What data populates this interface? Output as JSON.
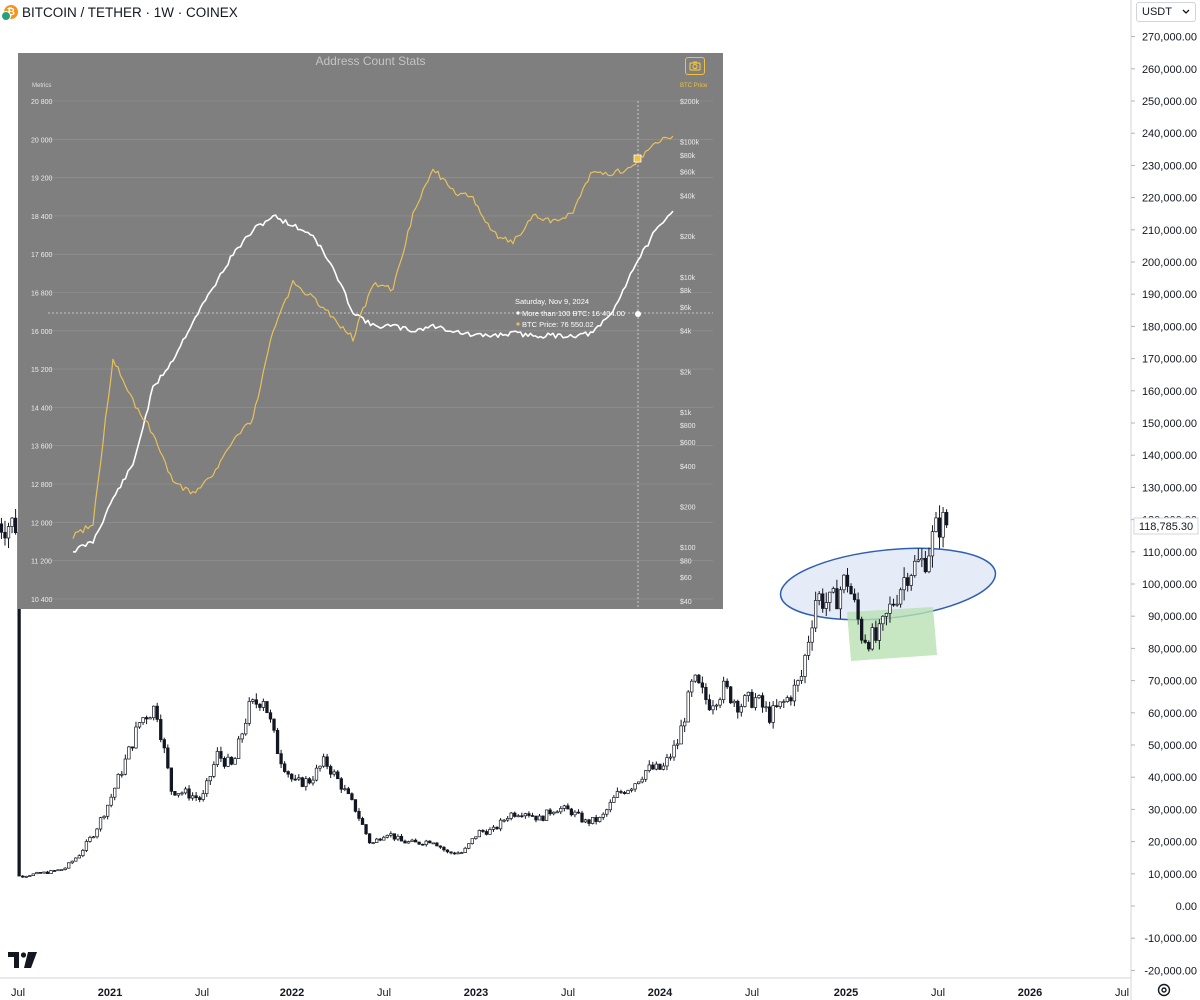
{
  "header": {
    "symbol": "BITCOIN / TETHER · 1W · COINEX",
    "currency": "USDT"
  },
  "icons": {
    "coin": "bitcoin-tether-icon",
    "dropdown": "chevron-down-icon",
    "settings": "gear-icon",
    "logo": "tradingview-logo-icon"
  },
  "colors": {
    "up": "#ffffff",
    "down": "#131722",
    "ellipse_fill": "#dce6f6",
    "ellipse_stroke": "#2f5fb5",
    "rect_fill": "#b9e1b4",
    "inset_bg": "#7f7f7f",
    "btc_price": "#e8c15a",
    "address_count": "#ffffff"
  },
  "chart_data": [
    {
      "type": "candlestick",
      "title": "BITCOIN / TETHER · 1W · COINEX",
      "y_axis": {
        "min": -20000,
        "max": 270000,
        "ticks": [
          "270,000.00",
          "260,000.00",
          "250,000.00",
          "240,000.00",
          "230,000.00",
          "220,000.00",
          "210,000.00",
          "200,000.00",
          "190,000.00",
          "180,000.00",
          "170,000.00",
          "160,000.00",
          "150,000.00",
          "140,000.00",
          "130,000.00",
          "120,000.00",
          "110,000.00",
          "100,000.00",
          "90,000.00",
          "80,000.00",
          "70,000.00",
          "60,000.00",
          "50,000.00",
          "40,000.00",
          "30,000.00",
          "20,000.00",
          "10,000.00",
          "0.00",
          "-10,000.00",
          "-20,000.00"
        ]
      },
      "x_axis": {
        "labels": [
          "Jul",
          "2021",
          "Jul",
          "2022",
          "Jul",
          "2023",
          "Jul",
          "2024",
          "Jul",
          "2025",
          "Jul",
          "2026",
          "Jul"
        ]
      },
      "last_price": "118,785.30",
      "price_path": [
        [
          "2020-07",
          9200
        ],
        [
          "2020-09",
          10500
        ],
        [
          "2020-10",
          11500
        ],
        [
          "2020-11",
          16000
        ],
        [
          "2020-12",
          23000
        ],
        [
          "2021-01",
          33000
        ],
        [
          "2021-02",
          45000
        ],
        [
          "2021-03",
          58000
        ],
        [
          "2021-04",
          62000
        ],
        [
          "2021-05",
          36000
        ],
        [
          "2021-06",
          35000
        ],
        [
          "2021-07",
          33000
        ],
        [
          "2021-08",
          47000
        ],
        [
          "2021-09",
          43000
        ],
        [
          "2021-10",
          61000
        ],
        [
          "2021-11",
          65000
        ],
        [
          "2021-12",
          47000
        ],
        [
          "2022-01",
          38000
        ],
        [
          "2022-02",
          39000
        ],
        [
          "2022-03",
          45000
        ],
        [
          "2022-04",
          38000
        ],
        [
          "2022-05",
          30000
        ],
        [
          "2022-06",
          19000
        ],
        [
          "2022-07",
          23000
        ],
        [
          "2022-08",
          20000
        ],
        [
          "2022-09",
          19500
        ],
        [
          "2022-10",
          20500
        ],
        [
          "2022-11",
          16500
        ],
        [
          "2022-12",
          16600
        ],
        [
          "2023-01",
          23000
        ],
        [
          "2023-02",
          23500
        ],
        [
          "2023-03",
          28500
        ],
        [
          "2023-04",
          29500
        ],
        [
          "2023-05",
          27000
        ],
        [
          "2023-06",
          30500
        ],
        [
          "2023-07",
          29500
        ],
        [
          "2023-08",
          26000
        ],
        [
          "2023-09",
          27000
        ],
        [
          "2023-10",
          34500
        ],
        [
          "2023-11",
          37500
        ],
        [
          "2023-12",
          42500
        ],
        [
          "2024-01",
          42500
        ],
        [
          "2024-02",
          51000
        ],
        [
          "2024-03",
          70000
        ],
        [
          "2024-04",
          63000
        ],
        [
          "2024-05",
          67500
        ],
        [
          "2024-06",
          62500
        ],
        [
          "2024-07",
          64500
        ],
        [
          "2024-08",
          59000
        ],
        [
          "2024-09",
          63500
        ],
        [
          "2024-10",
          70000
        ],
        [
          "2024-11",
          96500
        ],
        [
          "2024-12",
          93500
        ],
        [
          "2025-01",
          102000
        ],
        [
          "2025-02",
          84000
        ],
        [
          "2025-03",
          82500
        ],
        [
          "2025-04",
          94500
        ],
        [
          "2025-05",
          104500
        ],
        [
          "2025-06",
          107000
        ],
        [
          "2025-07",
          118785
        ]
      ],
      "annotations": [
        {
          "type": "ellipse"
        },
        {
          "type": "rectangle"
        }
      ]
    },
    {
      "type": "line",
      "title": "Address Count Stats",
      "left_axis_label": "Metrics",
      "right_axis_label": "BTC Price",
      "left_axis_ticks": [
        "20 800",
        "20 000",
        "19 200",
        "18 400",
        "17 600",
        "16 800",
        "16 000",
        "15 200",
        "14 400",
        "13 600",
        "12 800",
        "12 000",
        "11 200",
        "10 400"
      ],
      "right_axis_ticks": [
        "$200k",
        "$100k",
        "$80k",
        "$60k",
        "$40k",
        "$20k",
        "$10k",
        "$8k",
        "$6k",
        "$4k",
        "$2k",
        "$1k",
        "$800",
        "$600",
        "$400",
        "$200",
        "$100",
        "$80",
        "$60",
        "$40"
      ],
      "right_axis_scale": "log",
      "tooltip": {
        "date": "Saturday, Nov 9, 2024",
        "line1": "More than 100 BTC: 16 404.00",
        "line2": "BTC Price: 76 550.02"
      },
      "series": [
        {
          "name": "More than 100 BTC",
          "color": "#ffffff",
          "axis": "left",
          "values": [
            11400,
            11600,
            12500,
            13200,
            14800,
            15400,
            16200,
            16900,
            17600,
            18100,
            18400,
            18200,
            18000,
            17300,
            16400,
            16100,
            16100,
            16000,
            16100,
            16000,
            15900,
            15900,
            15950,
            15900,
            15900,
            15900,
            15950,
            16400,
            17300,
            18000,
            18500
          ]
        },
        {
          "name": "BTC Price",
          "color": "#e8c15a",
          "axis": "right",
          "values": [
            120,
            150,
            2500,
            1200,
            700,
            300,
            250,
            350,
            600,
            900,
            4000,
            9000,
            7000,
            5000,
            3500,
            9000,
            8000,
            29000,
            64000,
            43000,
            38000,
            21000,
            18000,
            28000,
            26000,
            30000,
            61000,
            58000,
            65000,
            100000,
            110000
          ]
        }
      ]
    }
  ]
}
